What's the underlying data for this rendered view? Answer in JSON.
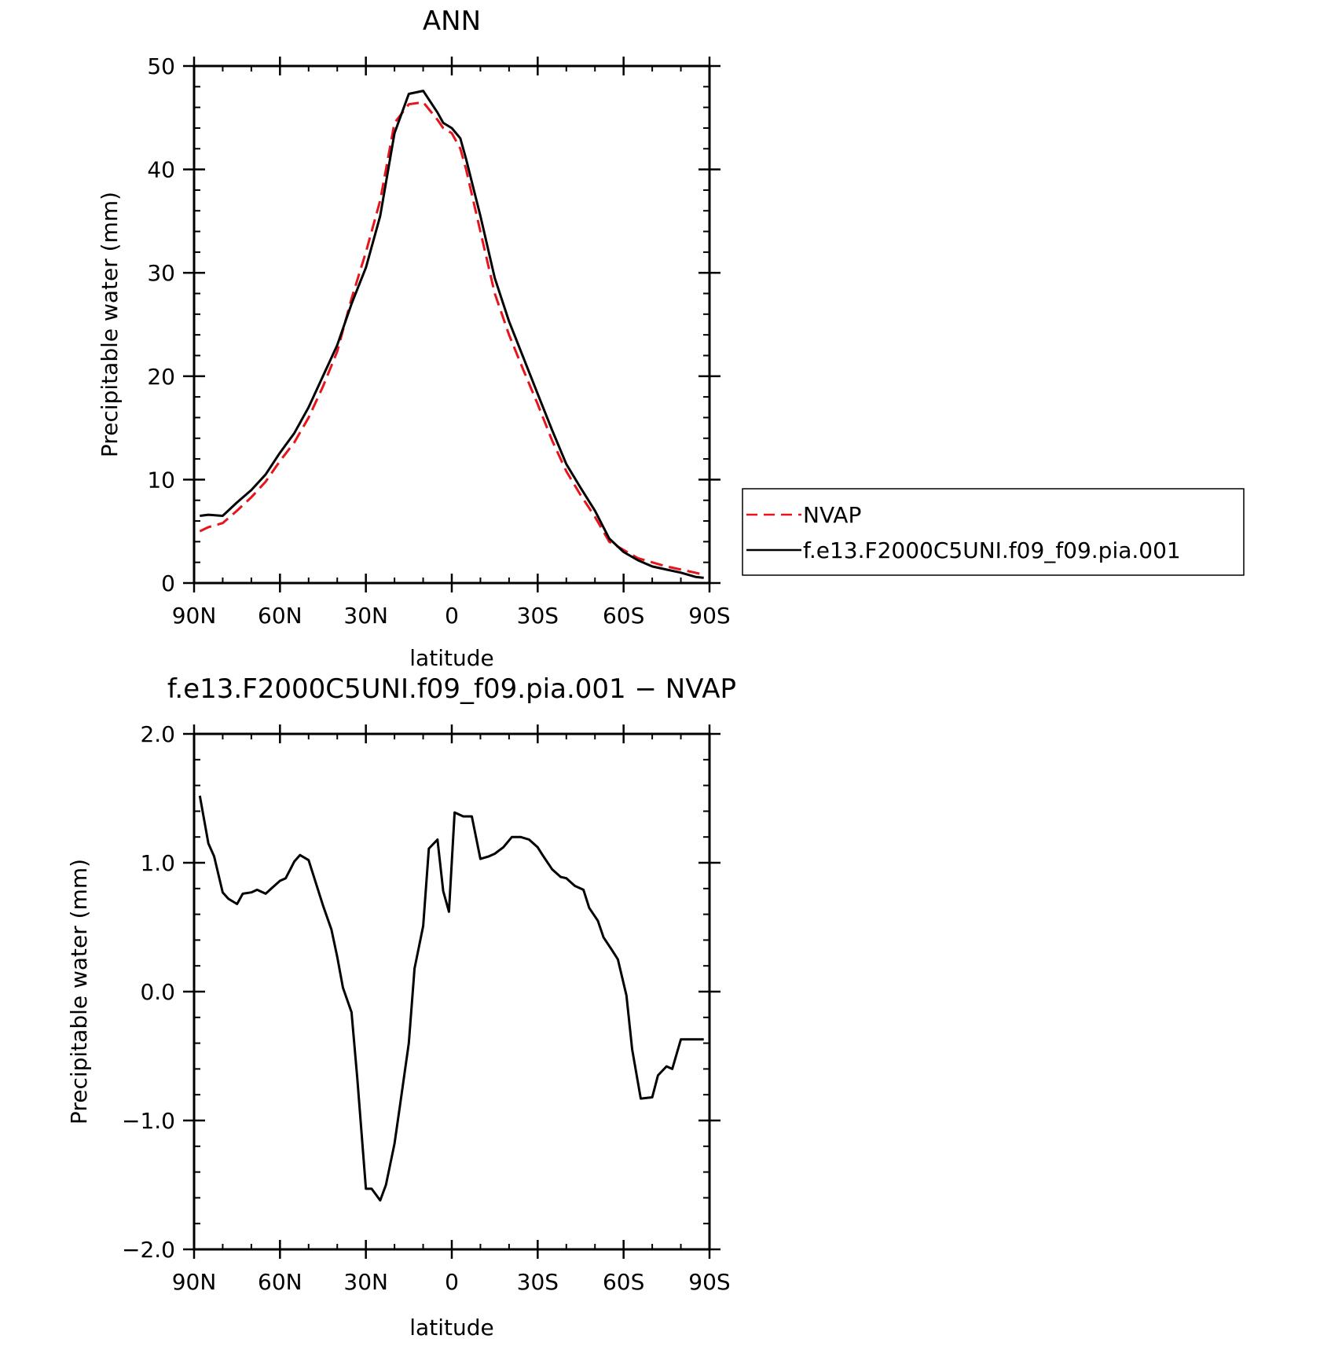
{
  "chart_data": [
    {
      "type": "line",
      "title": "ANN",
      "xlabel": "latitude",
      "ylabel": "Precipitable water (mm)",
      "xlim": [
        90,
        -90
      ],
      "ylim": [
        0,
        50
      ],
      "x_ticks": [
        90,
        60,
        30,
        0,
        -30,
        -60,
        -90
      ],
      "x_tick_labels": [
        "90N",
        "60N",
        "30N",
        "0",
        "30S",
        "60S",
        "90S"
      ],
      "y_ticks": [
        0,
        10,
        20,
        30,
        40,
        50
      ],
      "y_tick_labels": [
        "0",
        "10",
        "20",
        "30",
        "40",
        "50"
      ],
      "grid": false,
      "legend": "right",
      "series": [
        {
          "name": "NVAP",
          "color": "#e8141c",
          "style": "dashed",
          "x": [
            88,
            85,
            80,
            75,
            70,
            65,
            60,
            55,
            50,
            45,
            40,
            35,
            30,
            25,
            20,
            15,
            10,
            5,
            3,
            0,
            -3,
            -5,
            -10,
            -15,
            -20,
            -25,
            -30,
            -35,
            -40,
            -45,
            -50,
            -55,
            -60,
            -65,
            -70,
            -75,
            -80,
            -85,
            -88
          ],
          "y": [
            5.0,
            5.4,
            5.8,
            7.0,
            8.3,
            9.8,
            11.8,
            13.6,
            16.0,
            19.0,
            22.4,
            27.5,
            32.0,
            37.0,
            44.5,
            46.3,
            46.5,
            44.8,
            44.0,
            43.5,
            42.0,
            40.0,
            34.0,
            28.0,
            24.0,
            20.6,
            17.3,
            13.8,
            10.8,
            8.5,
            6.4,
            4.0,
            3.2,
            2.4,
            2.0,
            1.6,
            1.3,
            1.0,
            0.8
          ]
        },
        {
          "name": "f.e13.F2000C5UNI.f09_f09.pia.001",
          "color": "#000000",
          "style": "solid",
          "x": [
            88,
            85,
            80,
            75,
            70,
            65,
            60,
            55,
            50,
            45,
            40,
            35,
            30,
            25,
            20,
            15,
            10,
            5,
            3,
            0,
            -3,
            -5,
            -10,
            -15,
            -20,
            -25,
            -30,
            -35,
            -40,
            -45,
            -50,
            -55,
            -60,
            -65,
            -70,
            -75,
            -80,
            -85,
            -88
          ],
          "y": [
            6.5,
            6.6,
            6.5,
            7.8,
            9.0,
            10.5,
            12.6,
            14.5,
            17.0,
            20.0,
            23.0,
            27.0,
            30.5,
            35.5,
            43.5,
            47.3,
            47.6,
            45.5,
            44.5,
            44.0,
            43.0,
            41.0,
            35.5,
            29.5,
            25.3,
            21.8,
            18.3,
            14.8,
            11.5,
            9.2,
            7.0,
            4.3,
            3.0,
            2.2,
            1.6,
            1.3,
            1.0,
            0.6,
            0.5
          ]
        }
      ]
    },
    {
      "type": "line",
      "title": "f.e13.F2000C5UNI.f09_f09.pia.001 − NVAP",
      "xlabel": "latitude",
      "ylabel": "Precipitable water (mm)",
      "xlim": [
        90,
        -90
      ],
      "ylim": [
        -2.0,
        2.0
      ],
      "x_ticks": [
        90,
        60,
        30,
        0,
        -30,
        -60,
        -90
      ],
      "x_tick_labels": [
        "90N",
        "60N",
        "30N",
        "0",
        "30S",
        "60S",
        "90S"
      ],
      "y_ticks": [
        2.0,
        1.0,
        0.0,
        -1.0,
        -2.0
      ],
      "y_tick_labels": [
        "2.0",
        "1.0",
        "0.0",
        "−1.0",
        "−2.0"
      ],
      "grid": false,
      "series": [
        {
          "color": "#000000",
          "style": "solid",
          "x": [
            88,
            85,
            83,
            80,
            78,
            75,
            73,
            70,
            68,
            65,
            63,
            60,
            58,
            55,
            53,
            50,
            48,
            45,
            42,
            40,
            38,
            35,
            33,
            30,
            28,
            25,
            23,
            20,
            18,
            15,
            13,
            10,
            8,
            5,
            3,
            1,
            -1,
            -4,
            -7,
            -10,
            -13,
            -15,
            -18,
            -21,
            -24,
            -27,
            -30,
            -32,
            -35,
            -38,
            -40,
            -43,
            -46,
            -48,
            -51,
            -53,
            -56,
            -58,
            -61,
            -63,
            -66,
            -70,
            -72,
            -75,
            -77,
            -80,
            -83,
            -85,
            -88
          ],
          "y": [
            1.52,
            1.15,
            1.05,
            0.77,
            0.72,
            0.68,
            0.76,
            0.77,
            0.79,
            0.76,
            0.8,
            0.86,
            0.88,
            1.01,
            1.06,
            1.02,
            0.88,
            0.67,
            0.48,
            0.27,
            0.03,
            -0.16,
            -0.67,
            -1.53,
            -1.53,
            -1.62,
            -1.5,
            -1.18,
            -0.87,
            -0.4,
            0.18,
            0.51,
            1.11,
            1.18,
            0.78,
            0.62,
            1.39,
            1.36,
            1.36,
            1.03,
            1.05,
            1.07,
            1.12,
            1.2,
            1.2,
            1.18,
            1.12,
            1.05,
            0.95,
            0.89,
            0.88,
            0.82,
            0.79,
            0.65,
            0.55,
            0.42,
            0.32,
            0.25,
            -0.03,
            -0.45,
            -0.83,
            -0.82,
            -0.65,
            -0.58,
            -0.6,
            -0.37,
            -0.37,
            -0.37,
            -0.37
          ]
        }
      ]
    }
  ]
}
